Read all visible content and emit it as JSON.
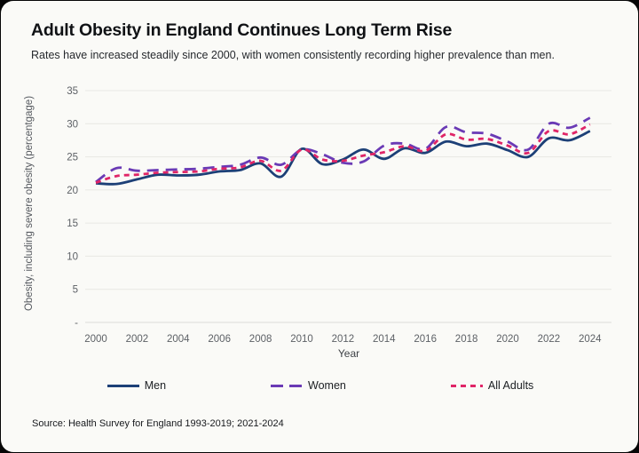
{
  "header": {
    "title": "Adult Obesity in England Continues Long Term Rise",
    "subtitle": "Rates have increased steadily since 2000, with women consistently recording higher prevalence than men."
  },
  "source_note": "Source: Health Survey for England 1993-2019; 2021-2024",
  "colors": {
    "men": "#1d4077",
    "women": "#6a3ab5",
    "all_adults": "#e02567",
    "gridline": "#e8e8e4",
    "axis_line": "#dcdcd8",
    "card_background": "#fafaf7"
  },
  "chart_data": {
    "type": "line",
    "title": "Adult Obesity in England Continues Long Term Rise",
    "subtitle": "Rates have increased steadily since 2000, with women consistently recording higher prevalence than men.",
    "xlabel": "Year",
    "ylabel": "Obesity, including severe obesity (percentgage)",
    "x": [
      2000,
      2001,
      2002,
      2003,
      2004,
      2005,
      2006,
      2007,
      2008,
      2009,
      2010,
      2011,
      2012,
      2013,
      2014,
      2015,
      2016,
      2017,
      2018,
      2019,
      2020,
      2021,
      2022,
      2023,
      2024
    ],
    "x_ticks": [
      {
        "value": 2000,
        "label": "2000"
      },
      {
        "value": 2002,
        "label": "2002"
      },
      {
        "value": 2004,
        "label": "2004"
      },
      {
        "value": 2006,
        "label": "2006"
      },
      {
        "value": 2008,
        "label": "2008"
      },
      {
        "value": 2010,
        "label": "2010"
      },
      {
        "value": 2012,
        "label": "2012"
      },
      {
        "value": 2014,
        "label": "2014"
      },
      {
        "value": 2016,
        "label": "2016"
      },
      {
        "value": 2018,
        "label": "2018"
      },
      {
        "value": 2020,
        "label": "2020"
      },
      {
        "value": 2022,
        "label": "2022"
      },
      {
        "value": 2024,
        "label": "2024"
      }
    ],
    "y_ticks": [
      {
        "value": 35,
        "label": "35"
      },
      {
        "value": 30,
        "label": "30"
      },
      {
        "value": 25,
        "label": "25"
      },
      {
        "value": 20,
        "label": "20"
      },
      {
        "value": 15,
        "label": "15"
      },
      {
        "value": 10,
        "label": "10"
      },
      {
        "value": 5,
        "label": "5"
      },
      {
        "value": 0,
        "label": "-"
      }
    ],
    "ylim": [
      0,
      35
    ],
    "xlim": [
      2000,
      2024
    ],
    "grid": true,
    "legend_position": "bottom",
    "series": [
      {
        "name": "Men",
        "color": "#1d4077",
        "dash": "solid",
        "values": [
          21.0,
          20.9,
          21.6,
          22.3,
          22.2,
          22.3,
          22.8,
          23.0,
          24.0,
          22.0,
          26.2,
          23.9,
          24.6,
          26.1,
          24.7,
          26.3,
          25.6,
          27.3,
          26.6,
          27.0,
          26.0,
          25.0,
          27.8,
          27.5,
          28.9
        ]
      },
      {
        "name": "Women",
        "color": "#6a3ab5",
        "dash": "long-dash",
        "values": [
          21.2,
          23.3,
          22.9,
          23.0,
          23.1,
          23.2,
          23.5,
          23.8,
          24.9,
          23.8,
          26.1,
          25.4,
          24.1,
          24.3,
          26.7,
          27.0,
          26.2,
          29.5,
          28.7,
          28.5,
          27.3,
          26.1,
          30.0,
          29.4,
          30.9
        ]
      },
      {
        "name": "All Adults",
        "color": "#e02567",
        "dash": "short-dash",
        "values": [
          21.1,
          22.1,
          22.3,
          22.6,
          22.7,
          22.8,
          23.2,
          23.4,
          24.4,
          22.9,
          26.1,
          24.6,
          24.4,
          25.2,
          25.7,
          26.6,
          25.9,
          28.4,
          27.6,
          27.7,
          26.7,
          25.6,
          28.9,
          28.4,
          29.9
        ]
      }
    ]
  }
}
